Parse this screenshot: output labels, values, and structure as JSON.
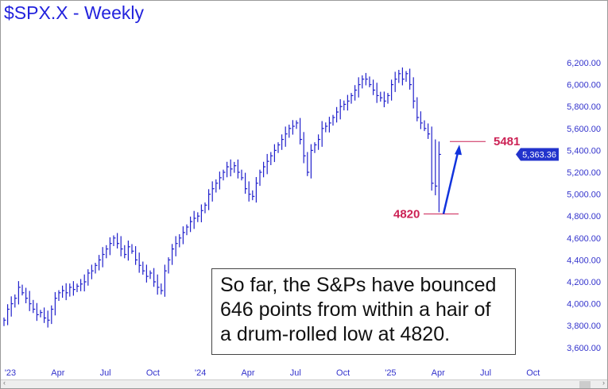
{
  "title": "$SPX.X - Weekly",
  "note": "So far, the S&Ps have bounced 646 points from within a hair of a drum-rolled low at 4820.",
  "colors": {
    "bars": "#2222cc",
    "annotation": "#cc2255",
    "arrow": "#1133dd",
    "axis": "#3333cc"
  },
  "chart_data": {
    "type": "ohlc",
    "title": "$SPX.X - Weekly",
    "xlabel": "",
    "ylabel": "",
    "ylim": [
      3600,
      6200
    ],
    "y_ticks": [
      "6,200.00",
      "6,000.00",
      "5,800.00",
      "5,600.00",
      "5,400.00",
      "5,200.00",
      "5,000.00",
      "4,800.00",
      "4,600.00",
      "4,400.00",
      "4,200.00",
      "4,000.00",
      "3,800.00",
      "3,600.00"
    ],
    "y_tick_values": [
      6200,
      6000,
      5800,
      5600,
      5400,
      5200,
      5000,
      4800,
      4600,
      4400,
      4200,
      4000,
      3800,
      3600
    ],
    "x_ticks": [
      "'23",
      "Apr",
      "Jul",
      "Oct",
      "'24",
      "Apr",
      "Jul",
      "Oct",
      "'25",
      "Apr",
      "Jul",
      "Oct"
    ],
    "x_tick_weeks": [
      0,
      13,
      26,
      39,
      52,
      65,
      78,
      91,
      104,
      117,
      130,
      143
    ],
    "last_price": "5,363.36",
    "weekly_close": [
      3850,
      3950,
      4000,
      4050,
      4150,
      4100,
      4050,
      4000,
      3950,
      3900,
      3920,
      3870,
      3850,
      3950,
      4050,
      4100,
      4120,
      4100,
      4150,
      4130,
      4160,
      4180,
      4200,
      4280,
      4300,
      4350,
      4400,
      4450,
      4500,
      4550,
      4600,
      4550,
      4500,
      4450,
      4520,
      4480,
      4400,
      4350,
      4300,
      4250,
      4280,
      4200,
      4150,
      4120,
      4300,
      4400,
      4500,
      4550,
      4600,
      4650,
      4700,
      4750,
      4780,
      4800,
      4850,
      4900,
      5000,
      5050,
      5100,
      5150,
      5200,
      5250,
      5230,
      5260,
      5200,
      5150,
      5050,
      5000,
      4980,
      5100,
      5200,
      5250,
      5300,
      5350,
      5400,
      5450,
      5500,
      5550,
      5600,
      5620,
      5650,
      5500,
      5350,
      5200,
      5400,
      5450,
      5500,
      5600,
      5620,
      5650,
      5700,
      5750,
      5800,
      5820,
      5850,
      5900,
      5950,
      6000,
      6050,
      6050,
      6000,
      5950,
      5900,
      5880,
      5850,
      5900,
      6000,
      6050,
      6100,
      6050,
      6100,
      6000,
      5850,
      5700,
      5650,
      5600,
      5550,
      5100,
      5074,
      5363
    ],
    "last_bar": {
      "high": 5481,
      "low": 4835,
      "close": 5363.36
    },
    "annotations": [
      {
        "label": "5481",
        "value": 5481
      },
      {
        "label": "4820",
        "value": 4820
      }
    ],
    "arrow": {
      "from": 4820,
      "to": 5481
    }
  }
}
